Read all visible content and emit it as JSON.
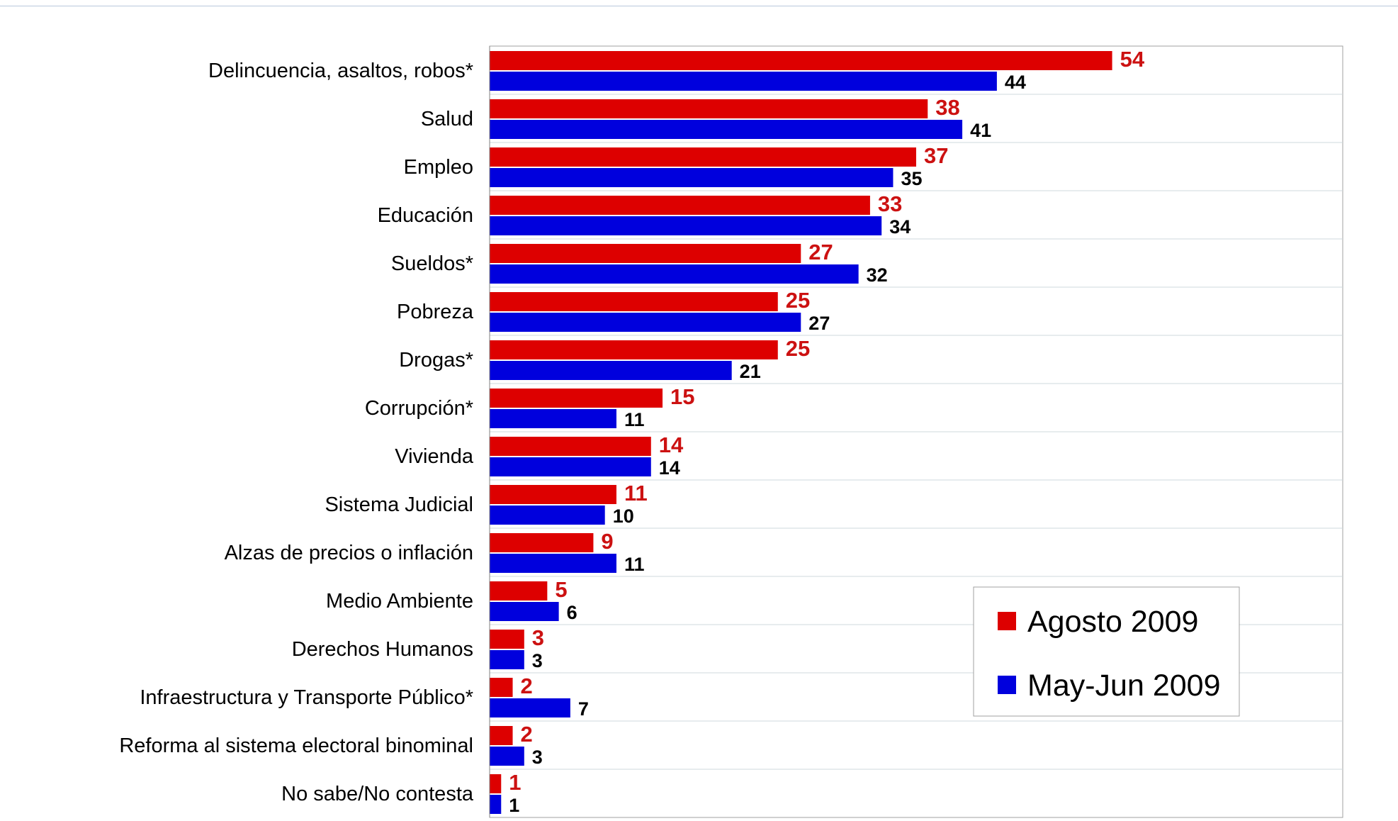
{
  "colors": {
    "agosto": "#dd0000",
    "mayjun": "#0000dd",
    "agosto_label": "#cc1111",
    "mayjun_label": "#000000",
    "grid": "#cfd8dc"
  },
  "legend": {
    "placement": "bottom-right",
    "items": [
      {
        "label": "Agosto 2009",
        "color": "#dd0000"
      },
      {
        "label": "May-Jun 2009",
        "color": "#0000dd"
      }
    ]
  },
  "chart_data": {
    "type": "bar",
    "orientation": "horizontal",
    "title": "",
    "xlabel": "",
    "ylabel": "",
    "xlim": [
      0,
      74
    ],
    "grid": true,
    "categories": [
      "Delincuencia, asaltos, robos*",
      "Salud",
      "Empleo",
      "Educación",
      "Sueldos*",
      "Pobreza",
      "Drogas*",
      "Corrupción*",
      "Vivienda",
      "Sistema Judicial",
      "Alzas de precios o inflación",
      "Medio Ambiente",
      "Derechos Humanos",
      "Infraestructura y Transporte Público*",
      "Reforma al sistema electoral binominal",
      "No sabe/No contesta"
    ],
    "series": [
      {
        "name": "Agosto 2009",
        "values": [
          54,
          38,
          37,
          33,
          27,
          25,
          25,
          15,
          14,
          11,
          9,
          5,
          3,
          2,
          2,
          1
        ]
      },
      {
        "name": "May-Jun 2009",
        "values": [
          44,
          41,
          35,
          34,
          32,
          27,
          21,
          11,
          14,
          10,
          11,
          6,
          3,
          7,
          3,
          1
        ]
      }
    ]
  }
}
